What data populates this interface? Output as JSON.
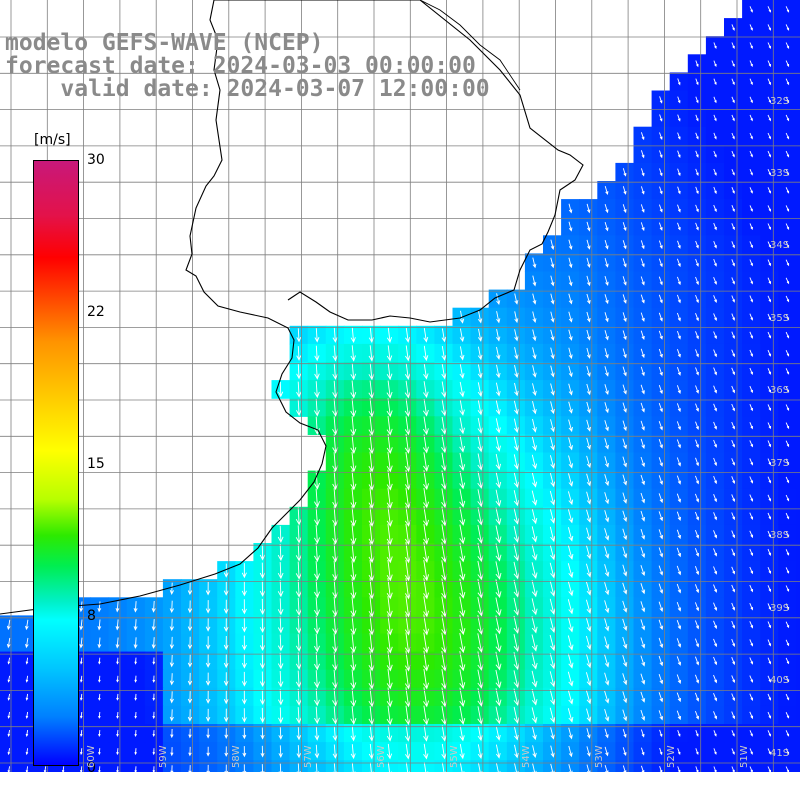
{
  "title": {
    "line1": "modelo GEFS-WAVE (NCEP)",
    "line2": "forecast date: 2024-03-03 00:00:00",
    "line3": "    valid date: 2024-03-07 12:00:00"
  },
  "colorbar": {
    "unit": "[m/s]",
    "ticks": [
      "30",
      "22",
      "15",
      "8",
      "0"
    ]
  },
  "lat_labels": [
    "32S",
    "33S",
    "34S",
    "35S",
    "36S",
    "37S",
    "38S",
    "39S",
    "40S",
    "41S"
  ],
  "lon_labels": [
    "60W",
    "59W",
    "58W",
    "57W",
    "56W",
    "55W",
    "54W",
    "53W",
    "52W",
    "51W"
  ],
  "colors": {
    "land": "#ffffff",
    "grid": "#7f7f7f",
    "coast": "#000000",
    "vectors": "#ffffff",
    "title_text": "#8a8a8a"
  },
  "field": {
    "quantity": "wind speed",
    "unit": "m/s",
    "range": [
      0,
      30
    ],
    "regions": [
      {
        "area": "far offshore north-east",
        "speed": 3
      },
      {
        "area": "Rio de la Plata mouth",
        "speed": 8
      },
      {
        "area": "central shelf",
        "speed": 11
      },
      {
        "area": "south-central",
        "speed": 12
      }
    ]
  }
}
